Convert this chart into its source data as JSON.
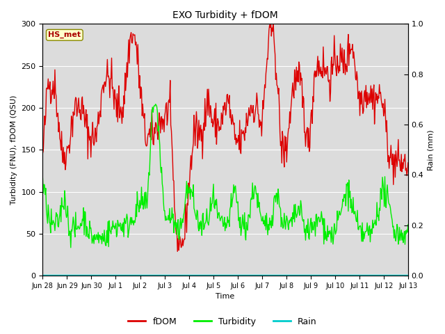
{
  "title": "EXO Turbidity + fDOM",
  "xlabel": "Time",
  "ylabel_left": "Turbidity (FNU), fDOM (QSU)",
  "ylabel_right": "Rain (mm)",
  "ylim_left": [
    0,
    300
  ],
  "ylim_right": [
    0,
    1.0
  ],
  "yticks_left": [
    0,
    50,
    100,
    150,
    200,
    250,
    300
  ],
  "yticks_right": [
    0.0,
    0.2,
    0.4,
    0.6,
    0.8,
    1.0
  ],
  "background_color": "#ffffff",
  "plot_bg_color": "#dcdcdc",
  "annotation_text": "HS_met",
  "annotation_bg": "#ffffcc",
  "annotation_border": "#888800",
  "fdom_color": "#dd0000",
  "turbidity_color": "#00ee00",
  "rain_color": "#00cccc",
  "legend_entries": [
    "fDOM",
    "Turbidity",
    "Rain"
  ],
  "x_tick_labels": [
    "Jun 28",
    "Jun 29",
    "Jun 30",
    "Jul 1",
    "Jul 2",
    "Jul 3",
    "Jul 4",
    "Jul 5",
    "Jul 6",
    "Jul 7",
    "Jul 8",
    "Jul 9",
    "Jul 10",
    "Jul 11",
    "Jul 12",
    "Jul 13"
  ],
  "n_points": 600
}
